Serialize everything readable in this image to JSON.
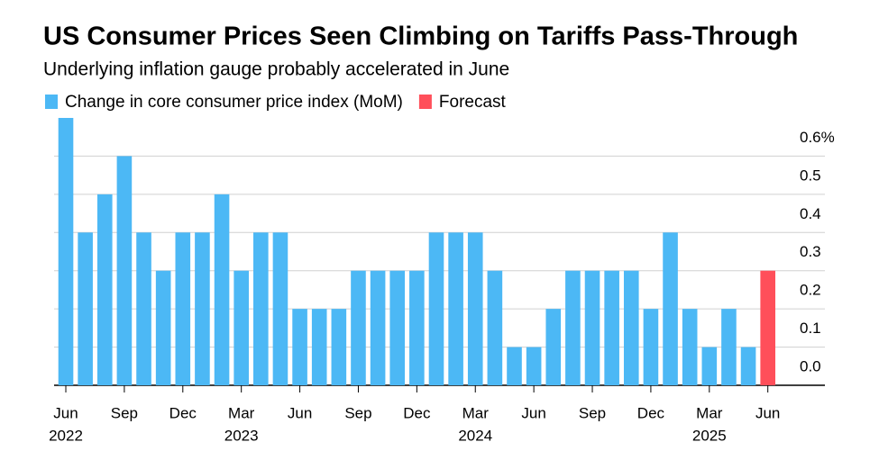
{
  "chart_data": {
    "type": "bar",
    "title": "US Consumer Prices Seen Climbing on Tariffs Pass-Through",
    "subtitle": "Underlying inflation gauge probably accelerated in June",
    "categories": [
      "Jun",
      null,
      null,
      "Sep",
      null,
      null,
      "Dec",
      null,
      null,
      "Mar",
      null,
      null,
      "Jun",
      null,
      null,
      "Sep",
      null,
      null,
      "Dec",
      null,
      null,
      "Mar",
      null,
      null,
      "Jun",
      null,
      null,
      "Sep",
      null,
      null,
      "Dec",
      null,
      null,
      "Mar",
      null,
      null,
      "Jun"
    ],
    "years": [
      "2022",
      null,
      null,
      null,
      null,
      null,
      null,
      null,
      null,
      "2023",
      null,
      null,
      null,
      null,
      null,
      null,
      null,
      null,
      null,
      null,
      null,
      "2024",
      null,
      null,
      null,
      null,
      null,
      null,
      null,
      null,
      null,
      null,
      null,
      "2025",
      null,
      null,
      null
    ],
    "series": [
      {
        "name": "Change in core consumer price index (MoM)",
        "color": "#4cb8f5",
        "values": [
          0.7,
          0.4,
          0.5,
          0.6,
          0.4,
          0.3,
          0.4,
          0.4,
          0.5,
          0.3,
          0.4,
          0.4,
          0.2,
          0.2,
          0.2,
          0.3,
          0.3,
          0.3,
          0.3,
          0.4,
          0.4,
          0.4,
          0.3,
          0.1,
          0.1,
          0.2,
          0.3,
          0.3,
          0.3,
          0.3,
          0.2,
          0.4,
          0.2,
          0.1,
          0.2,
          0.1,
          null
        ]
      },
      {
        "name": "Forecast",
        "color": "#ff4f5a",
        "values": [
          null,
          null,
          null,
          null,
          null,
          null,
          null,
          null,
          null,
          null,
          null,
          null,
          null,
          null,
          null,
          null,
          null,
          null,
          null,
          null,
          null,
          null,
          null,
          null,
          null,
          null,
          null,
          null,
          null,
          null,
          null,
          null,
          null,
          null,
          null,
          null,
          0.3
        ]
      }
    ],
    "ylim": [
      0,
      0.7
    ],
    "yticks": [
      {
        "value": 0,
        "label": "0.0"
      },
      0.1,
      0.2,
      0.3,
      0.4,
      0.5,
      {
        "value": 0.6,
        "label": "0.6%"
      }
    ],
    "grid": true
  }
}
